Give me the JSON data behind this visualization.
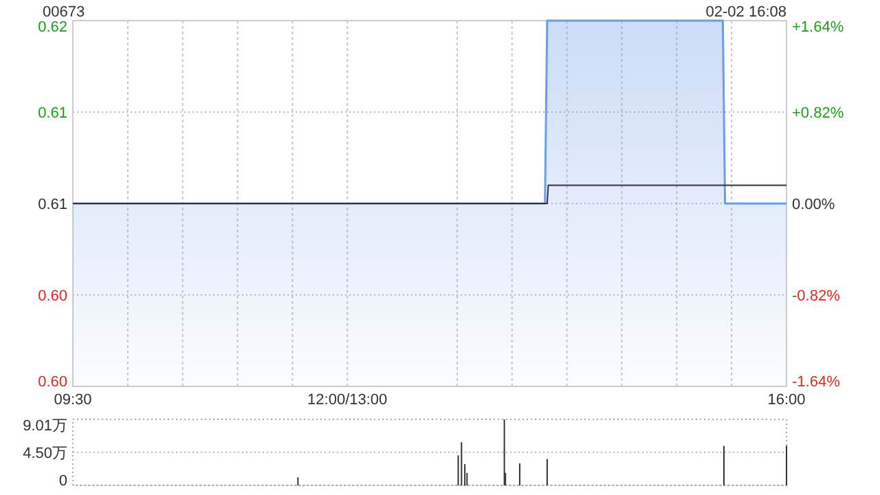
{
  "chart_data": [
    {
      "type": "area",
      "title": "00673",
      "annotations": [
        "02-02 16:08"
      ],
      "xlim": [
        9.5,
        16
      ],
      "xticks": [
        {
          "value": 9.5,
          "label": "09:30"
        },
        {
          "value": 10,
          "label": null
        },
        {
          "value": 10.5,
          "label": null
        },
        {
          "value": 11,
          "label": null
        },
        {
          "value": 11.5,
          "label": null
        },
        {
          "value": 12,
          "label": "12:00/13:00"
        },
        {
          "value": 13,
          "label": null
        },
        {
          "value": 13.5,
          "label": null
        },
        {
          "value": 14,
          "label": null
        },
        {
          "value": 14.5,
          "label": null
        },
        {
          "value": 15,
          "label": null
        },
        {
          "value": 15.5,
          "label": null
        },
        {
          "value": 16,
          "label": "16:00"
        }
      ],
      "ylim": [
        0.6,
        0.62
      ],
      "yticks": [
        {
          "value": 0.62,
          "label": "0.62"
        },
        {
          "value": 0.615,
          "label": "0.61"
        },
        {
          "value": 0.61,
          "label": "0.61"
        },
        {
          "value": 0.605,
          "label": "0.60"
        },
        {
          "value": 0.6,
          "label": "0.60"
        }
      ],
      "y2lim": [
        -1.64,
        1.64
      ],
      "y2ticks": [
        {
          "value": 1.64,
          "label": "+1.64%"
        },
        {
          "value": 0.82,
          "label": "+0.82%"
        },
        {
          "value": 0,
          "label": "0.00%"
        },
        {
          "value": -0.82,
          "label": "-0.82%"
        },
        {
          "value": -1.64,
          "label": "-1.64%"
        }
      ],
      "grid": true,
      "series": [
        {
          "color": "#6b9ce8",
          "x": [
            9.5,
            13.8,
            13.82,
            15.42,
            15.44,
            16
          ],
          "values": [
            0.61,
            0.61,
            0.62,
            0.62,
            0.61,
            0.61
          ]
        },
        {
          "type": "line",
          "color": "#333333",
          "x": [
            9.5,
            13.82,
            13.83,
            16
          ],
          "values": [
            0.61,
            0.61,
            0.611,
            0.611
          ]
        }
      ]
    },
    {
      "type": "bar",
      "xlim": [
        9.5,
        16
      ],
      "ylim": [
        0,
        9.01
      ],
      "yticks": [
        {
          "value": 0,
          "label": "0"
        },
        {
          "value": 4.5,
          "label": "4.50万"
        },
        {
          "value": 9.01,
          "label": "9.01万"
        }
      ],
      "grid": "y",
      "tick_labels": "y",
      "series": [
        {
          "color": "#333333",
          "x": [
            11.55,
            13.01,
            13.04,
            13.07,
            13.09,
            13.43,
            13.44,
            13.57,
            13.82,
            15.43,
            16
          ],
          "values": [
            1.1,
            4.1,
            5.9,
            2.9,
            1.7,
            9.0,
            1.7,
            3.0,
            3.6,
            5.4,
            5.4
          ]
        }
      ]
    }
  ]
}
